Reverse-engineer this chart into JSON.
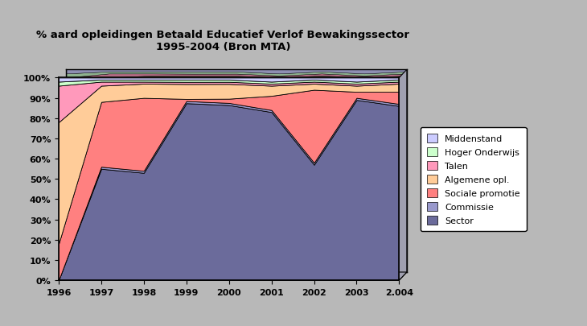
{
  "title_line1": "% aard opleidingen Betaald Educatief Verlof Bewakingssector",
  "title_line2": "1995-2004 (Bron MTA)",
  "years": [
    1996,
    1997,
    1998,
    1999,
    2000,
    2001,
    2002,
    2003,
    2004
  ],
  "year_labels": [
    "1996",
    "1997",
    "1998",
    "1999",
    "2000",
    "2001",
    "2002",
    "2003",
    "2.004"
  ],
  "series": {
    "Sector": [
      0,
      55,
      53,
      83,
      83,
      83,
      57,
      89,
      86
    ],
    "Commissie": [
      0,
      1,
      1,
      1,
      1,
      1,
      1,
      1,
      1
    ],
    "Sociale promotie": [
      18,
      32,
      36,
      1,
      2,
      7,
      36,
      3,
      6
    ],
    "Algemene opl.": [
      60,
      8,
      7,
      7,
      7,
      5,
      3,
      3,
      4
    ],
    "Talen": [
      18,
      2,
      1,
      1,
      1,
      1,
      1,
      1,
      1
    ],
    "Hoger Onderwijs": [
      2,
      1,
      1,
      1,
      1,
      1,
      1,
      1,
      1
    ],
    "Middenstand": [
      2,
      1,
      1,
      1,
      1,
      2,
      1,
      2,
      1
    ]
  },
  "colors": {
    "Sector": "#6b6b9b",
    "Commissie": "#9999cc",
    "Sociale promotie": "#ff8080",
    "Algemene opl.": "#ffcc99",
    "Talen": "#ff99bb",
    "Hoger Onderwijs": "#ccffcc",
    "Middenstand": "#ccccff"
  },
  "legend_order": [
    "Middenstand",
    "Hoger Onderwijs",
    "Talen",
    "Algemene opl.",
    "Sociale promotie",
    "Commissie",
    "Sector"
  ],
  "background_color": "#b8b8b8",
  "plot_bg_color": "#c8c8c8",
  "ylim": [
    0,
    100
  ],
  "ylabel_ticks": [
    "0%",
    "10%",
    "20%",
    "30%",
    "40%",
    "50%",
    "60%",
    "70%",
    "80%",
    "90%",
    "100%"
  ]
}
